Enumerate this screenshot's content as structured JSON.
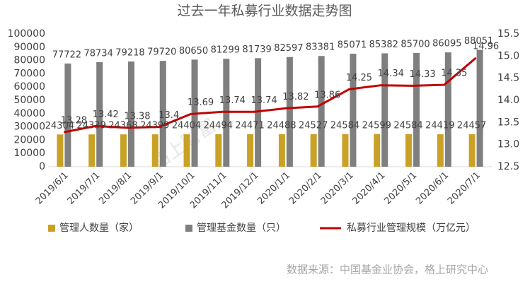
{
  "chart_data": {
    "type": "bar",
    "title": "过去一年私募行业数据走势图",
    "source": "数据来源：中国基金业协会，格上研究中心",
    "watermark": "格上财富",
    "categories": [
      "2019/6/1",
      "2019/7/1",
      "2019/8/1",
      "2019/9/1",
      "2019/10/1",
      "2019/11/1",
      "2019/12/1",
      "2020/1/1",
      "2020/2/1",
      "2020/3/1",
      "2020/4/1",
      "2020/5/1",
      "2020/6/1",
      "2020/7/1"
    ],
    "series": [
      {
        "name": "管理人数量（家）",
        "type": "bar",
        "color": "#c9a126",
        "values": [
          24304,
          24339,
          24368,
          24399,
          24404,
          24494,
          24471,
          24488,
          24527,
          24584,
          24599,
          24584,
          24419,
          24457
        ]
      },
      {
        "name": "管理基金数量（只）",
        "type": "bar",
        "color": "#7f7f7f",
        "values": [
          77722,
          78734,
          79218,
          79720,
          80650,
          81299,
          81739,
          82597,
          83381,
          85071,
          85382,
          85700,
          86095,
          88051
        ]
      },
      {
        "name": "私募行业管理规模（万亿元）",
        "type": "line",
        "axis": "y2",
        "color": "#c00000",
        "values": [
          13.28,
          13.42,
          13.38,
          13.4,
          13.69,
          13.74,
          13.74,
          13.82,
          13.86,
          14.25,
          14.34,
          14.33,
          14.35,
          14.96
        ]
      }
    ],
    "ylim": [
      0,
      100000
    ],
    "yticks": [
      0,
      10000,
      20000,
      30000,
      40000,
      50000,
      60000,
      70000,
      80000,
      90000,
      100000
    ],
    "y2lim": [
      12.5,
      15.5
    ],
    "y2ticks": [
      12.5,
      {
        "value": 13,
        "label": "13.0"
      },
      13.5,
      {
        "value": 14,
        "label": "14.0"
      },
      14.5,
      {
        "value": 15,
        "label": "15.0"
      },
      15.5
    ],
    "legend": "bottom"
  }
}
